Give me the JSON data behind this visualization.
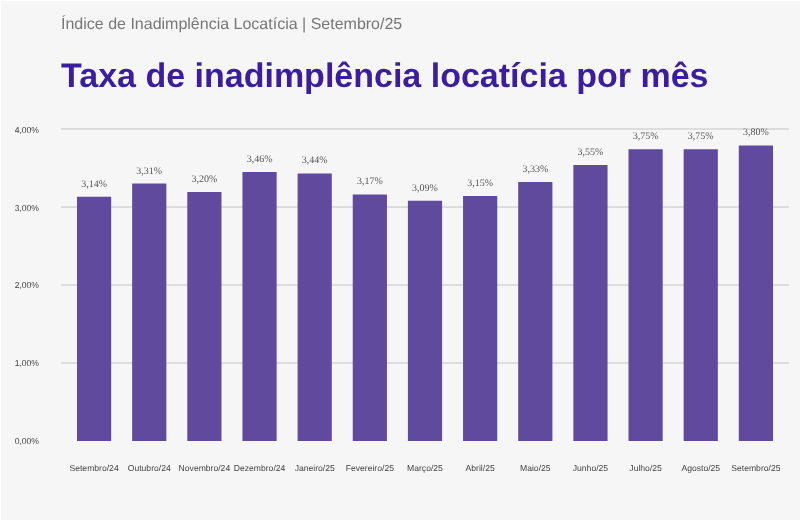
{
  "chart_data": {
    "type": "bar",
    "subtitle": "Índice de Inadimplência Locatícia | Setembro/25",
    "title": "Taxa de inadimplência locatícia por mês",
    "categories": [
      "Setembro/24",
      "Outubro/24",
      "Novembro/24",
      "Dezembro/24",
      "Janeiro/25",
      "Fevereiro/25",
      "Março/25",
      "Abril/25",
      "Maio/25",
      "Junho/25",
      "Julho/25",
      "Agosto/25",
      "Setembro/25"
    ],
    "values": [
      3.14,
      3.31,
      3.2,
      3.46,
      3.44,
      3.17,
      3.09,
      3.15,
      3.33,
      3.55,
      3.75,
      3.75,
      3.8
    ],
    "value_labels": [
      "3,14%",
      "3,31%",
      "3,20%",
      "3,46%",
      "3,44%",
      "3,17%",
      "3,09%",
      "3,15%",
      "3,33%",
      "3,55%",
      "3,75%",
      "3,75%",
      "3,80%"
    ],
    "color": "#5f4a9e",
    "ylim": [
      0,
      4.0
    ],
    "yticks": [
      {
        "value": 0,
        "label": "0,00%"
      },
      {
        "value": 1,
        "label": "1,00%"
      },
      {
        "value": 2,
        "label": "2,00%"
      },
      {
        "value": 3,
        "label": "3,00%"
      },
      {
        "value": 4,
        "label": "4,00%"
      }
    ],
    "grid": "y"
  }
}
